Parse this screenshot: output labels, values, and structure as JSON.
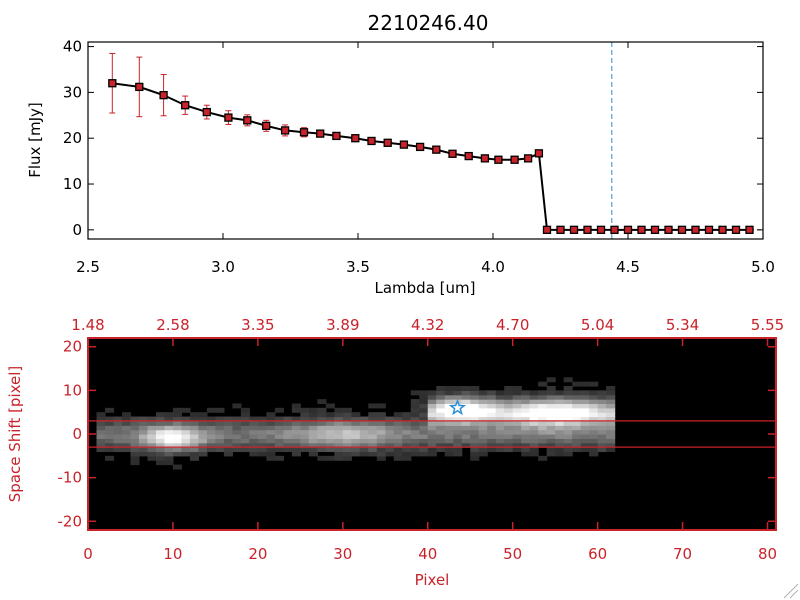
{
  "colors": {
    "accent": "#c8232a",
    "line": "#000000",
    "marker": "#c8232a",
    "cutoff": "#2b8fd6",
    "star": "#2b8fd6"
  },
  "chart_data": [
    {
      "type": "line",
      "title": "2210246.40",
      "xlabel": "Lambda [um]",
      "ylabel": "Flux [mJy]",
      "xlim": [
        2.5,
        5.0
      ],
      "ylim": [
        -2,
        41
      ],
      "xticks": [
        "2.5",
        "3.0",
        "3.5",
        "4.0",
        "4.5",
        "5.0"
      ],
      "yticks": [
        "0",
        "10",
        "20",
        "30",
        "40"
      ],
      "cutoff_line_x": 4.44,
      "series": [
        {
          "name": "flux",
          "x": [
            2.59,
            2.69,
            2.78,
            2.86,
            2.94,
            3.02,
            3.09,
            3.16,
            3.23,
            3.3,
            3.36,
            3.42,
            3.49,
            3.55,
            3.61,
            3.67,
            3.73,
            3.79,
            3.85,
            3.91,
            3.97,
            4.02,
            4.08,
            4.13,
            4.17,
            4.2,
            4.25,
            4.3,
            4.35,
            4.4,
            4.45,
            4.5,
            4.55,
            4.6,
            4.65,
            4.7,
            4.75,
            4.8,
            4.85,
            4.9,
            4.95
          ],
          "y": [
            32,
            31.2,
            29.4,
            27.2,
            25.7,
            24.5,
            23.9,
            22.7,
            21.7,
            21.3,
            21.0,
            20.5,
            20.0,
            19.4,
            19.0,
            18.6,
            18.1,
            17.5,
            16.6,
            16.1,
            15.6,
            15.3,
            15.3,
            15.6,
            16.7,
            0,
            0,
            0,
            0,
            0,
            0,
            0,
            0,
            0,
            0,
            0,
            0,
            0,
            0,
            0,
            0
          ],
          "err": [
            6.5,
            6.5,
            4.5,
            2.0,
            1.5,
            1.5,
            1.2,
            1.2,
            1.2,
            1.0,
            0.5,
            0.4,
            0.4,
            0.4,
            0.4,
            0.4,
            0.4,
            0.4,
            0.4,
            0.4,
            0.4,
            0.4,
            0.4,
            0.4,
            0.4,
            0,
            0,
            0,
            0,
            0,
            0,
            0,
            0,
            0,
            0,
            0,
            0,
            0,
            0,
            0,
            0
          ]
        }
      ]
    },
    {
      "type": "heatmap",
      "xlabel": "Pixel",
      "ylabel": "Space Shift [pixel]",
      "xlim": [
        0,
        81
      ],
      "ylim": [
        -22,
        22
      ],
      "xticks": [
        "0",
        "10",
        "20",
        "30",
        "40",
        "50",
        "60",
        "70",
        "80"
      ],
      "yticks": [
        "-20",
        "-10",
        "0",
        "10",
        "20"
      ],
      "top_axis_ticks": [
        "1.48",
        "2.58",
        "3.35",
        "3.89",
        "4.32",
        "4.70",
        "5.04",
        "5.34",
        "5.55"
      ],
      "aperture_lines_y": [
        3,
        -3
      ],
      "star_marker": {
        "x": 43.5,
        "y": 6
      },
      "blobs": [
        {
          "x": 10,
          "y": -1,
          "intensity": 1.0
        },
        {
          "x": 44,
          "y": 6,
          "intensity": 0.95
        },
        {
          "x": 30,
          "y": 0,
          "intensity": 0.5
        },
        {
          "x": 55,
          "y": 5,
          "intensity": 0.75
        }
      ]
    }
  ]
}
